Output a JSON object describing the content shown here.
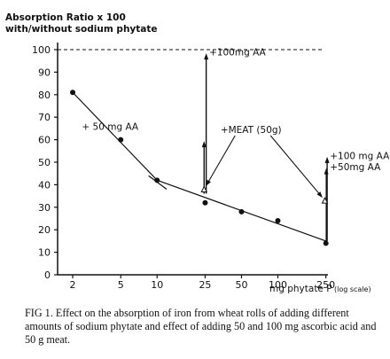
{
  "chart_data": {
    "type": "line",
    "ylabel_line1": "Absorption Ratio x 100",
    "ylabel_line2": "with/without sodium phytate",
    "xlabel": "mg phytate P",
    "xlabel_note": "(log scale)",
    "x_scale": "log",
    "xlim": [
      1.5,
      260
    ],
    "ylim": [
      0,
      100
    ],
    "x_ticks": [
      2,
      5,
      10,
      25,
      50,
      100,
      250
    ],
    "y_ticks": [
      0,
      10,
      20,
      30,
      40,
      50,
      60,
      70,
      80,
      90,
      100
    ],
    "reference_line": {
      "y": 100,
      "style": "dashed"
    },
    "series": [
      {
        "x": [
          2,
          5,
          10,
          25,
          50,
          100,
          250
        ],
        "y": [
          81,
          60,
          42,
          32,
          28,
          24,
          14
        ],
        "marker": "filled-circle"
      }
    ],
    "fit_lines": [
      {
        "from": [
          2,
          81
        ],
        "to": [
          10,
          42
        ]
      },
      {
        "from": [
          8.5,
          44
        ],
        "to": [
          12,
          38
        ]
      },
      {
        "from": [
          10,
          42
        ],
        "to": [
          250,
          15
        ]
      }
    ],
    "arrows": [
      {
        "label": "+100mg AA",
        "x": 25.5,
        "y_from": 36,
        "y_to": 98
      },
      {
        "label": "+ 50 mg AA",
        "x": 24.5,
        "y_from": 36,
        "y_to": 59
      },
      {
        "label": "+100 mg AA",
        "x": 256,
        "y_from": 15,
        "y_to": 52
      },
      {
        "label": "+50mg AA",
        "x": 252,
        "y_from": 15,
        "y_to": 47
      }
    ],
    "meat_points": [
      {
        "x": 24.5,
        "y": 38
      },
      {
        "x": 245,
        "y": 33
      }
    ],
    "meat_label": "+MEAT (50g)",
    "meat_label_pos": {
      "x": 60,
      "y": 63
    },
    "label_positions": [
      {
        "x": 27,
        "y": 99
      },
      {
        "x": 7,
        "y": 66
      },
      {
        "x": 270,
        "y": 53
      },
      {
        "x": 270,
        "y": 48
      }
    ]
  },
  "caption": "FIG 1. Effect on the absorption of iron from wheat rolls of adding different amounts of sodium phytate and effect of adding 50 and 100 mg ascorbic acid and 50 g meat."
}
